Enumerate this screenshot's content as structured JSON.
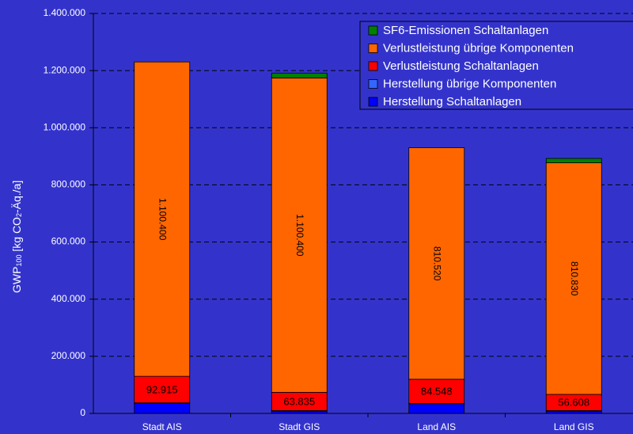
{
  "chart_data": {
    "type": "stacked_bar",
    "ylabel_parts": [
      "GWP",
      "100",
      " [kg CO",
      "2",
      "-Äq./a]"
    ],
    "categories": [
      "Stadt AIS",
      "Stadt GIS",
      "Land AIS",
      "Land GIS"
    ],
    "series": [
      {
        "name": "Herstellung Schaltanlagen",
        "color": "#0000ff",
        "values": [
          35000,
          8000,
          33000,
          8000
        ]
      },
      {
        "name": "Herstellung übrige Komponenten",
        "color": "#3366ff",
        "values": [
          2000,
          2000,
          2000,
          2000
        ]
      },
      {
        "name": "Verlustleistung Schaltanlagen",
        "color": "#ff0000",
        "values": [
          92915,
          63835,
          84548,
          56608
        ],
        "value_labels": [
          "92.915",
          "63.835",
          "84.548",
          "56.608"
        ]
      },
      {
        "name": "Verlustleistung übrige Komponenten",
        "color": "#ff6600",
        "values": [
          1100400,
          1100400,
          810520,
          810830
        ],
        "value_labels": [
          "1.100.400",
          "1.100.400",
          "810.520",
          "810.830"
        ]
      },
      {
        "name": "SF6-Emissionen Schaltanlagen",
        "color": "#008000",
        "values": [
          null,
          17000,
          null,
          15000
        ]
      }
    ],
    "ylim": [
      0,
      1400000
    ],
    "yticks": [
      0,
      {
        "value": 200000,
        "label": "200.000"
      },
      {
        "value": 400000,
        "label": "400.000"
      },
      {
        "value": 600000,
        "label": "600.000"
      },
      {
        "value": 800000,
        "label": "800.000"
      },
      {
        "value": 1000000,
        "label": "1.000.000"
      },
      {
        "value": 1200000,
        "label": "1.200.000"
      },
      {
        "value": 1400000,
        "label": "1.400.000"
      }
    ],
    "grid": true
  }
}
